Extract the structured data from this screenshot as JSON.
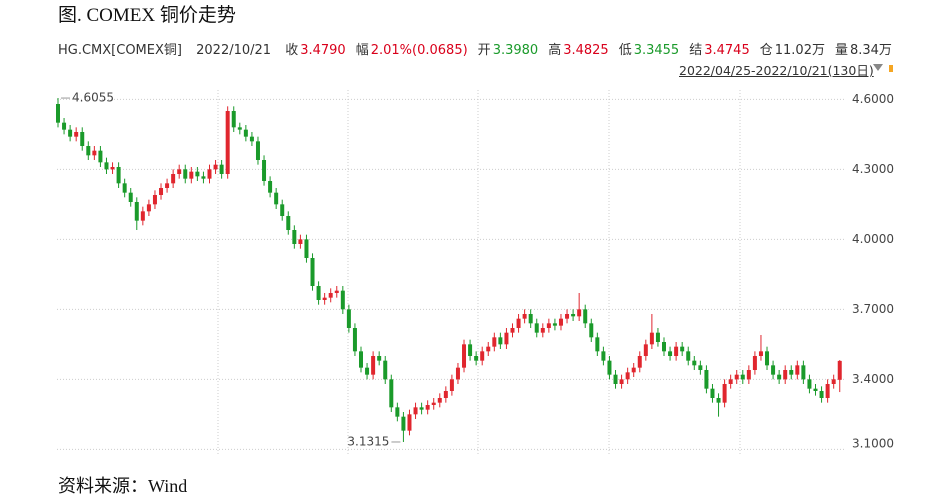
{
  "header": {
    "title": "图. COMEX 铜价走势",
    "instrument": "HG.CMX[COMEX铜]",
    "date": "2022/10/21",
    "quote": [
      {
        "label": "收",
        "value": "3.4790",
        "color": "#d9001b"
      },
      {
        "label": "幅",
        "value": "2.01%(0.0685)",
        "color": "#d9001b"
      },
      {
        "label": "开",
        "value": "3.3980",
        "color": "#1a9a2a"
      },
      {
        "label": "高",
        "value": "3.4825",
        "color": "#d9001b"
      },
      {
        "label": "低",
        "value": "3.3455",
        "color": "#1a9a2a"
      },
      {
        "label": "结",
        "value": "3.4745",
        "color": "#d9001b"
      },
      {
        "label": "仓",
        "value": "11.02万",
        "color": "#333333"
      },
      {
        "label": "量",
        "value": "8.34万",
        "color": "#333333"
      }
    ],
    "range": "2022/04/25-2022/10/21(130日)"
  },
  "chart_data": {
    "type": "candlestick",
    "up_color": "#e0262e",
    "down_color": "#1a9a2a",
    "grid": true,
    "ylim": [
      3.08,
      4.64
    ],
    "yticks": [
      {
        "value": 3.1,
        "label": "3.1000"
      },
      {
        "value": 3.4,
        "label": "3.4000"
      },
      {
        "value": 3.7,
        "label": "3.7000"
      },
      {
        "value": 4.0,
        "label": "4.0000"
      },
      {
        "value": 4.3,
        "label": "4.3000"
      },
      {
        "value": 4.6,
        "label": "4.6000"
      }
    ],
    "open": [
      4.58,
      4.5,
      4.47,
      4.44,
      4.46,
      4.4,
      4.36,
      4.38,
      4.33,
      4.3,
      4.31,
      4.24,
      4.2,
      4.16,
      4.08,
      4.12,
      4.15,
      4.19,
      4.22,
      4.24,
      4.28,
      4.3,
      4.26,
      4.29,
      4.27,
      4.26,
      4.3,
      4.32,
      4.28,
      4.55,
      4.48,
      4.47,
      4.44,
      4.42,
      4.34,
      4.25,
      4.2,
      4.15,
      4.1,
      4.04,
      3.98,
      4.0,
      3.92,
      3.8,
      3.74,
      3.75,
      3.77,
      3.78,
      3.7,
      3.62,
      3.52,
      3.45,
      3.42,
      3.5,
      3.48,
      3.4,
      3.28,
      3.24,
      3.18,
      3.25,
      3.28,
      3.27,
      3.29,
      3.3,
      3.32,
      3.35,
      3.4,
      3.45,
      3.55,
      3.5,
      3.48,
      3.52,
      3.54,
      3.58,
      3.55,
      3.6,
      3.62,
      3.66,
      3.68,
      3.64,
      3.6,
      3.62,
      3.64,
      3.63,
      3.66,
      3.68,
      3.67,
      3.7,
      3.64,
      3.58,
      3.52,
      3.48,
      3.42,
      3.38,
      3.4,
      3.43,
      3.45,
      3.5,
      3.55,
      3.6,
      3.56,
      3.52,
      3.5,
      3.54,
      3.52,
      3.48,
      3.46,
      3.44,
      3.36,
      3.32,
      3.3,
      3.38,
      3.4,
      3.42,
      3.4,
      3.44,
      3.5,
      3.52,
      3.46,
      3.42,
      3.4,
      3.44,
      3.42,
      3.46,
      3.4,
      3.36,
      3.35,
      3.32,
      3.38,
      3.398
    ],
    "high": [
      4.6055,
      4.52,
      4.49,
      4.48,
      4.48,
      4.42,
      4.4,
      4.4,
      4.35,
      4.33,
      4.33,
      4.26,
      4.22,
      4.18,
      4.14,
      4.17,
      4.21,
      4.24,
      4.26,
      4.3,
      4.32,
      4.32,
      4.31,
      4.31,
      4.29,
      4.32,
      4.34,
      4.34,
      4.57,
      4.57,
      4.5,
      4.49,
      4.46,
      4.44,
      4.36,
      4.27,
      4.22,
      4.17,
      4.12,
      4.06,
      4.02,
      4.02,
      3.94,
      3.82,
      3.77,
      3.79,
      3.8,
      3.8,
      3.72,
      3.64,
      3.54,
      3.47,
      3.52,
      3.52,
      3.5,
      3.42,
      3.3,
      3.26,
      3.27,
      3.3,
      3.3,
      3.31,
      3.32,
      3.34,
      3.37,
      3.42,
      3.47,
      3.57,
      3.57,
      3.52,
      3.54,
      3.56,
      3.6,
      3.6,
      3.62,
      3.64,
      3.68,
      3.7,
      3.7,
      3.66,
      3.64,
      3.66,
      3.66,
      3.68,
      3.7,
      3.7,
      3.77,
      3.72,
      3.66,
      3.6,
      3.54,
      3.5,
      3.44,
      3.42,
      3.45,
      3.47,
      3.52,
      3.57,
      3.68,
      3.62,
      3.58,
      3.54,
      3.56,
      3.56,
      3.54,
      3.5,
      3.48,
      3.46,
      3.38,
      3.34,
      3.4,
      3.42,
      3.44,
      3.44,
      3.46,
      3.52,
      3.59,
      3.54,
      3.48,
      3.44,
      3.46,
      3.46,
      3.48,
      3.48,
      3.42,
      3.38,
      3.37,
      3.4,
      3.42,
      3.4825
    ],
    "low": [
      4.48,
      4.45,
      4.42,
      4.42,
      4.38,
      4.34,
      4.34,
      4.31,
      4.28,
      4.28,
      4.22,
      4.18,
      4.14,
      4.04,
      4.06,
      4.1,
      4.13,
      4.17,
      4.2,
      4.22,
      4.26,
      4.24,
      4.24,
      4.25,
      4.24,
      4.24,
      4.28,
      4.26,
      4.26,
      4.46,
      4.45,
      4.42,
      4.4,
      4.32,
      4.23,
      4.18,
      4.13,
      4.08,
      4.02,
      3.96,
      3.96,
      3.9,
      3.78,
      3.72,
      3.72,
      3.73,
      3.75,
      3.68,
      3.6,
      3.5,
      3.43,
      3.4,
      3.4,
      3.46,
      3.38,
      3.26,
      3.22,
      3.1315,
      3.16,
      3.23,
      3.25,
      3.25,
      3.27,
      3.28,
      3.3,
      3.33,
      3.38,
      3.43,
      3.48,
      3.46,
      3.46,
      3.5,
      3.52,
      3.53,
      3.53,
      3.58,
      3.6,
      3.64,
      3.62,
      3.58,
      3.58,
      3.6,
      3.61,
      3.61,
      3.64,
      3.65,
      3.65,
      3.62,
      3.56,
      3.5,
      3.46,
      3.4,
      3.36,
      3.36,
      3.38,
      3.41,
      3.43,
      3.48,
      3.53,
      3.54,
      3.5,
      3.48,
      3.48,
      3.5,
      3.46,
      3.44,
      3.42,
      3.34,
      3.3,
      3.24,
      3.28,
      3.36,
      3.38,
      3.38,
      3.38,
      3.42,
      3.48,
      3.44,
      3.4,
      3.38,
      3.38,
      3.4,
      3.4,
      3.38,
      3.34,
      3.33,
      3.3,
      3.3,
      3.36,
      3.3455
    ],
    "close": [
      4.5,
      4.47,
      4.44,
      4.46,
      4.4,
      4.36,
      4.38,
      4.33,
      4.3,
      4.31,
      4.24,
      4.2,
      4.16,
      4.08,
      4.12,
      4.15,
      4.19,
      4.22,
      4.24,
      4.28,
      4.3,
      4.26,
      4.29,
      4.27,
      4.26,
      4.3,
      4.32,
      4.28,
      4.55,
      4.48,
      4.47,
      4.44,
      4.42,
      4.34,
      4.25,
      4.2,
      4.15,
      4.1,
      4.04,
      3.98,
      4.0,
      3.92,
      3.8,
      3.74,
      3.75,
      3.77,
      3.78,
      3.7,
      3.62,
      3.52,
      3.45,
      3.42,
      3.5,
      3.48,
      3.4,
      3.28,
      3.24,
      3.18,
      3.25,
      3.28,
      3.27,
      3.29,
      3.3,
      3.32,
      3.35,
      3.4,
      3.45,
      3.55,
      3.5,
      3.48,
      3.52,
      3.54,
      3.58,
      3.55,
      3.6,
      3.62,
      3.66,
      3.68,
      3.64,
      3.6,
      3.62,
      3.64,
      3.63,
      3.66,
      3.68,
      3.67,
      3.7,
      3.64,
      3.58,
      3.52,
      3.48,
      3.42,
      3.38,
      3.4,
      3.43,
      3.45,
      3.5,
      3.55,
      3.6,
      3.56,
      3.52,
      3.5,
      3.54,
      3.52,
      3.48,
      3.46,
      3.44,
      3.36,
      3.32,
      3.3,
      3.38,
      3.4,
      3.42,
      3.4,
      3.44,
      3.5,
      3.52,
      3.46,
      3.42,
      3.4,
      3.44,
      3.42,
      3.46,
      3.4,
      3.36,
      3.35,
      3.32,
      3.38,
      3.4,
      3.479
    ]
  },
  "footer": {
    "source": "资料来源：Wind"
  }
}
